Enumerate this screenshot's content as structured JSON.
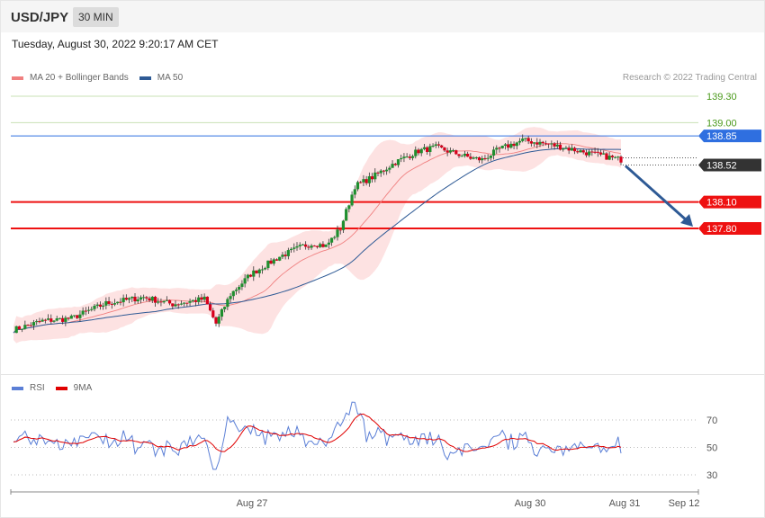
{
  "header": {
    "pair": "USD/JPY",
    "timeframe": "30 MIN",
    "timestamp": "Tuesday, August 30, 2022 9:20:17 AM CET"
  },
  "legend_main": [
    {
      "label": "MA 20 + Bollinger Bands",
      "color": "#f08080"
    },
    {
      "label": "MA 50",
      "color": "#2e5a95"
    }
  ],
  "copyright": "Research © 2022 Trading Central",
  "legend_rsi": [
    {
      "label": "RSI",
      "color": "#5b7fd6"
    },
    {
      "label": "9MA",
      "color": "#e00000"
    }
  ],
  "chart_data": [
    {
      "type": "candlestick",
      "series": [
        {
          "name": "MA 20 + Bollinger Bands",
          "color": "#f08080"
        },
        {
          "name": "MA 50",
          "color": "#2e5a95"
        }
      ],
      "ylim": [
        136.8,
        139.4
      ],
      "levels": [
        {
          "label": "139.30",
          "value": 139.3,
          "color": "#8fc46a",
          "style": "thin-line-green-label"
        },
        {
          "label": "139.00",
          "value": 139.0,
          "color": "#8fc46a",
          "style": "thin-line-green-label"
        },
        {
          "label": "138.85",
          "value": 138.85,
          "color": "#2f6fe0",
          "style": "tag"
        },
        {
          "label": "138.52",
          "value": 138.52,
          "color": "#333333",
          "style": "tag-dotted"
        },
        {
          "label": "138.10",
          "value": 138.1,
          "color": "#ee1111",
          "style": "tag-thick"
        },
        {
          "label": "137.80",
          "value": 137.8,
          "color": "#ee1111",
          "style": "tag-thick"
        }
      ],
      "forecast_arrow": {
        "from": 138.52,
        "to": 137.8,
        "color": "#2e5a95"
      },
      "x_labels": [
        "Aug 27",
        "Aug 30",
        "Aug 31",
        "Sep 12"
      ]
    },
    {
      "type": "line",
      "series": [
        {
          "name": "RSI",
          "color": "#5b7fd6"
        },
        {
          "name": "9MA",
          "color": "#e00000"
        }
      ],
      "ylim": [
        20,
        80
      ],
      "ticks": [
        "70",
        "50",
        "30"
      ],
      "tick_values": [
        70,
        50,
        30
      ]
    }
  ]
}
